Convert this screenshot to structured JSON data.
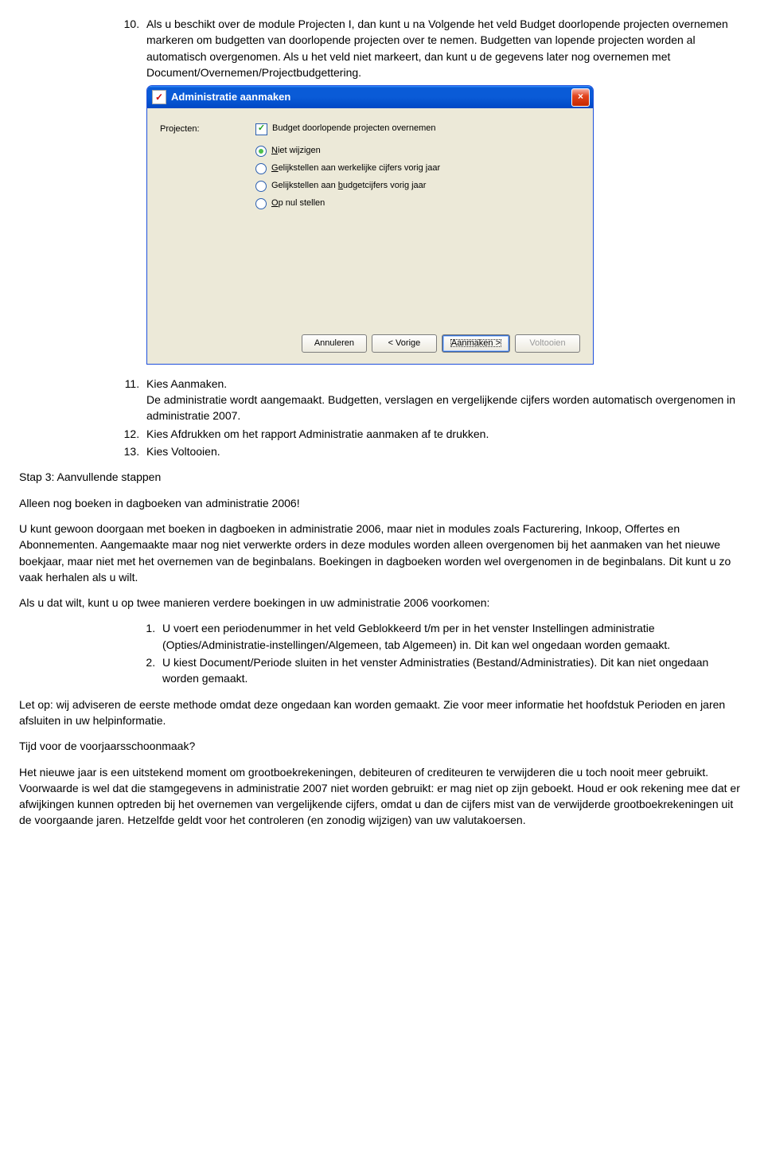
{
  "list1": {
    "start": 10,
    "item10_intro": "Als u beschikt over de module Projecten I, dan kunt u na Volgende het veld Budget doorlopende projecten overnemen markeren om budgetten van doorlopende projecten over te nemen. Budgetten van lopende projecten worden al automatisch overgenomen. Als u het veld niet markeert, dan kunt u de gegevens later nog overnemen met Document/Overnemen/Projectbudgettering.",
    "item11": "Kies Aanmaken.",
    "item11_extra": "De administratie wordt aangemaakt. Budgetten, verslagen en vergelijkende cijfers worden automatisch overgenomen in administratie 2007.",
    "item12": "Kies Afdrukken om het rapport Administratie aanmaken af te drukken.",
    "item13": "Kies Voltooien."
  },
  "dialog": {
    "title": "Administratie aanmaken",
    "field_label": "Projecten:",
    "checkbox_label": "Budget doorlopende projecten overnemen",
    "radio_niet_html": "<u>N</u>iet wijzigen",
    "radio_werkelijk_html": "<u>G</u>elijkstellen aan werkelijke cijfers vorig jaar",
    "radio_budget_html": "Gelijkstellen aan <u>b</u>udgetcijfers vorig jaar",
    "radio_nul_html": "<u>O</u>p nul stellen",
    "btn_cancel": "Annuleren",
    "btn_back": "< Vorige",
    "btn_make": "Aanmaken >",
    "btn_finish": "Voltooien",
    "colors": {
      "titlebar_top": "#3a95ff",
      "titlebar_bottom": "#0048c5",
      "body_bg": "#ece9d8",
      "close_bg": "#e2451e"
    }
  },
  "step3": {
    "heading": "Stap 3: Aanvullende stappen",
    "line1": "Alleen nog boeken in dagboeken van administratie 2006!",
    "p1": "U kunt gewoon doorgaan met boeken in dagboeken in administratie 2006, maar niet in modules zoals Facturering, Inkoop, Offertes en Abonnementen. Aangemaakte maar nog niet verwerkte orders in deze modules worden alleen overgenomen bij het aanmaken van het nieuwe boekjaar, maar niet met het overnemen van de beginbalans. Boekingen in dagboeken worden wel overgenomen in de beginbalans. Dit kunt u zo vaak herhalen als u wilt.",
    "p2": "Als u dat wilt, kunt u op twee manieren verdere boekingen in uw administratie 2006 voorkomen:"
  },
  "list2": {
    "item1": "U voert een periodenummer in het veld Geblokkeerd t/m per in het venster Instellingen administratie (Opties/Administratie-instellingen/Algemeen, tab Algemeen) in. Dit kan wel ongedaan worden gemaakt.",
    "item2": "U kiest Document/Periode sluiten in het venster Administraties (Bestand/Administraties). Dit kan niet ongedaan worden gemaakt."
  },
  "after": {
    "p1": "Let op: wij adviseren de eerste methode omdat deze ongedaan kan worden gemaakt. Zie voor meer informatie het hoofdstuk Perioden en jaren afsluiten in uw helpinformatie.",
    "q": "Tijd voor de voorjaarsschoonmaak?",
    "p2": "Het nieuwe jaar is een uitstekend moment om grootboekrekeningen, debiteuren of crediteuren te verwijderen die u toch nooit meer gebruikt. Voorwaarde is wel dat die stamgegevens in administratie 2007 niet worden gebruikt: er mag niet op zijn geboekt. Houd er ook rekening mee dat er afwijkingen kunnen optreden bij het overnemen van vergelijkende cijfers, omdat u dan de cijfers mist van de verwijderde grootboekrekeningen uit de voorgaande jaren. Hetzelfde geldt voor het controleren (en zonodig wijzigen) van uw valutakoersen."
  }
}
